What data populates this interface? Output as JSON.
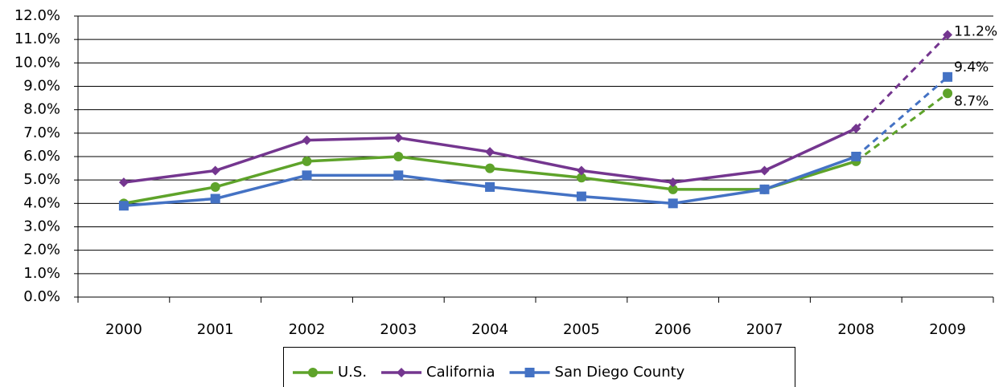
{
  "chart_data": {
    "type": "line",
    "categories": [
      "2000",
      "2001",
      "2002",
      "2003",
      "2004",
      "2005",
      "2006",
      "2007",
      "2008",
      "2009"
    ],
    "series": [
      {
        "name": "U.S.",
        "color": "#5ea32a",
        "marker": "circle",
        "values": [
          4.0,
          4.7,
          5.8,
          6.0,
          5.5,
          5.1,
          4.6,
          4.6,
          5.8,
          8.7
        ],
        "value_labels": [
          null,
          null,
          null,
          null,
          null,
          null,
          null,
          null,
          null,
          "8.7%"
        ]
      },
      {
        "name": "California",
        "color": "#74368f",
        "marker": "diamond",
        "values": [
          4.9,
          5.4,
          6.7,
          6.8,
          6.2,
          5.4,
          4.9,
          5.4,
          7.2,
          11.2
        ],
        "value_labels": [
          null,
          null,
          null,
          null,
          null,
          null,
          null,
          null,
          null,
          "11.2%"
        ]
      },
      {
        "name": "San Diego County",
        "color": "#4472c4",
        "marker": "square",
        "values": [
          3.9,
          4.2,
          5.2,
          5.2,
          4.7,
          4.3,
          4.0,
          4.6,
          6.0,
          9.4
        ],
        "value_labels": [
          null,
          null,
          null,
          null,
          null,
          null,
          null,
          null,
          null,
          "9.4%"
        ]
      }
    ],
    "ylim": [
      0,
      12
    ],
    "yticks": [
      {
        "value": 0,
        "label": "0.0%"
      },
      {
        "value": 1,
        "label": "1.0%"
      },
      {
        "value": 2,
        "label": "2.0%"
      },
      {
        "value": 3,
        "label": "3.0%"
      },
      {
        "value": 4,
        "label": "4.0%"
      },
      {
        "value": 5,
        "label": "5.0%"
      },
      {
        "value": 6,
        "label": "6.0%"
      },
      {
        "value": 7,
        "label": "7.0%"
      },
      {
        "value": 8,
        "label": "8.0%"
      },
      {
        "value": 9,
        "label": "9.0%"
      },
      {
        "value": 10,
        "label": "10.0%"
      },
      {
        "value": 11,
        "label": "11.0%"
      },
      {
        "value": 12,
        "label": "12.0%"
      }
    ],
    "grid": true,
    "legend": "bottom"
  }
}
